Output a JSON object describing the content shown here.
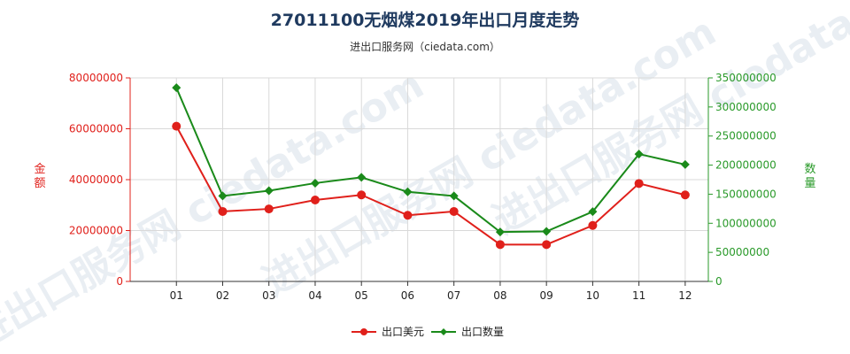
{
  "chart_data": {
    "type": "line",
    "title": "27011100无烟煤2019年出口月度走势",
    "subtitle": "进出口服务网（ciedata.com）",
    "categories": [
      "01",
      "02",
      "03",
      "04",
      "05",
      "06",
      "07",
      "08",
      "09",
      "10",
      "11",
      "12"
    ],
    "series": [
      {
        "name": "出口美元",
        "axis": "left",
        "color": "#e0201b",
        "values": [
          61000000,
          27500000,
          28500000,
          32000000,
          34000000,
          26000000,
          27500000,
          14500000,
          14500000,
          22000000,
          38500000,
          34000000
        ]
      },
      {
        "name": "出口数量",
        "axis": "right",
        "color": "#1a8a1a",
        "values": [
          333000000,
          147000000,
          156000000,
          169000000,
          179000000,
          154000000,
          147000000,
          85000000,
          86000000,
          120000000,
          219000000,
          201000000
        ]
      }
    ],
    "y_left": {
      "label": "金额",
      "min": 0,
      "max": 80000000,
      "ticks": [
        "0",
        "20000000",
        "40000000",
        "60000000",
        "80000000"
      ]
    },
    "y_right": {
      "label": "数量",
      "min": 0,
      "max": 350000000,
      "ticks": [
        "0",
        "50000000",
        "100000000",
        "150000000",
        "200000000",
        "250000000",
        "300000000",
        "350000000"
      ]
    },
    "grid": true,
    "legend_position": "bottom-center",
    "watermark": "进出口服务网 ciedata.com"
  }
}
